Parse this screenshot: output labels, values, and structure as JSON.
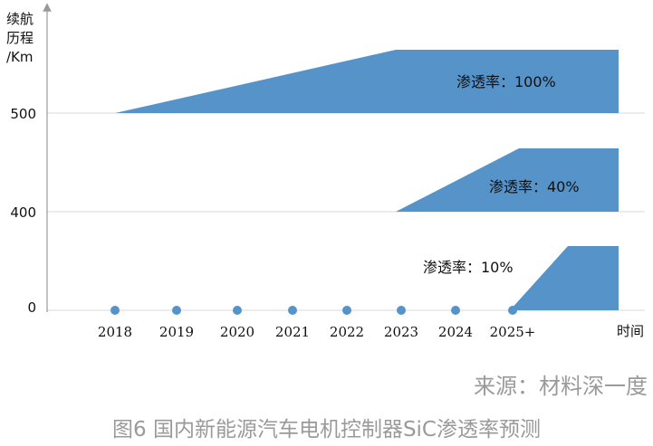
{
  "chart_data": {
    "type": "area",
    "ylabel": "续航\n历程\n/Km",
    "xlabel": "时间",
    "yticks": [
      "0",
      "400",
      "500"
    ],
    "categories": [
      "2018",
      "2019",
      "2020",
      "2021",
      "2022",
      "2023",
      "2024",
      "2025+"
    ],
    "bands": [
      {
        "label": "渗透率：100%",
        "penetration": 100,
        "range_tier": "500",
        "start_year": "2018",
        "ramp_end_year": "2023"
      },
      {
        "label": "渗透率：40%",
        "penetration": 40,
        "range_tier": "400",
        "start_year": "2023",
        "ramp_end_year": "2025+"
      },
      {
        "label": "渗透率：10%",
        "penetration": 10,
        "range_tier": "0",
        "start_year": "2025+"
      }
    ],
    "fill_color": "#5593c9",
    "grid": true
  },
  "source": "来源：材料深一度",
  "caption": "图6 国内新能源汽车电机控制器SiC渗透率预测"
}
